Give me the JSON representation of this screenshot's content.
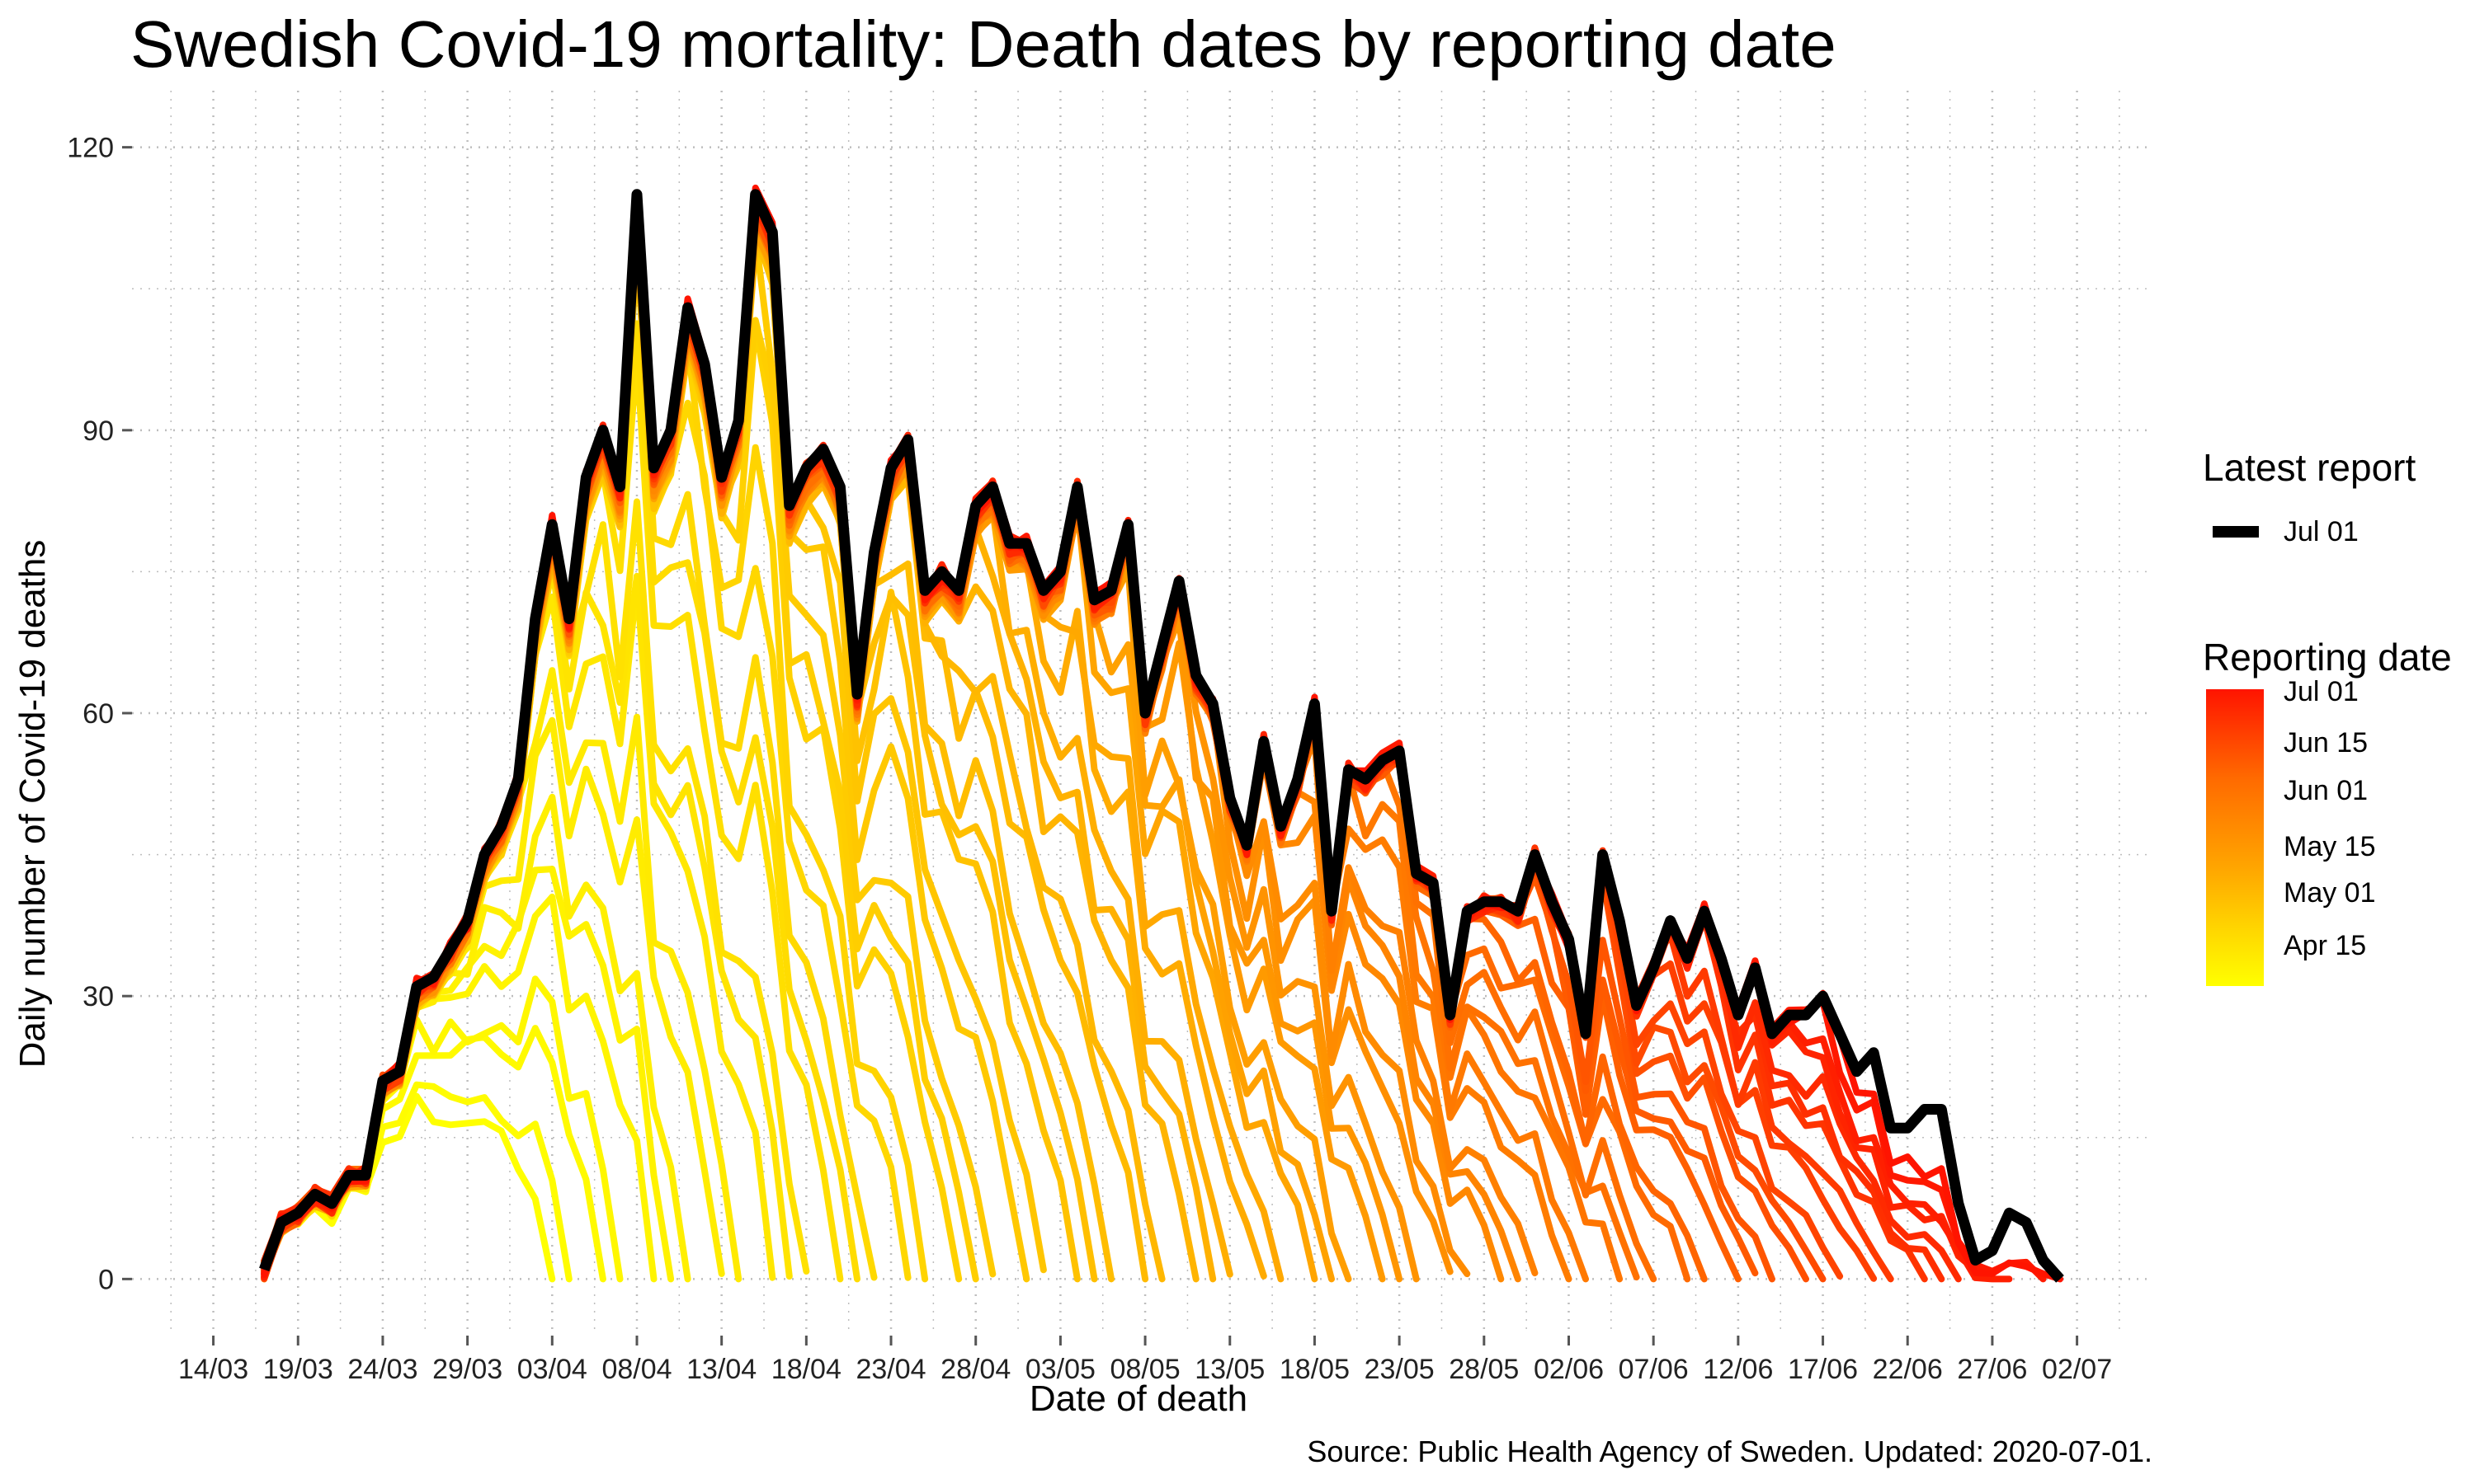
{
  "chart_data": {
    "type": "line",
    "title": "Swedish Covid-19 mortality: Death dates by reporting date",
    "xlabel": "Date of death",
    "ylabel": "Daily number of Covid-19 deaths",
    "source": "Source: Public Health Agency of Sweden. Updated: 2020-07-01.",
    "ylim": [
      -6,
      126
    ],
    "yticks": [
      0,
      30,
      60,
      90,
      120
    ],
    "x_start": "14/03",
    "x_day_range": [
      -4.8,
      114.5
    ],
    "xticks": [
      {
        "day": 0,
        "label": "14/03"
      },
      {
        "day": 5,
        "label": "19/03"
      },
      {
        "day": 10,
        "label": "24/03"
      },
      {
        "day": 15,
        "label": "29/03"
      },
      {
        "day": 20,
        "label": "03/04"
      },
      {
        "day": 25,
        "label": "08/04"
      },
      {
        "day": 30,
        "label": "13/04"
      },
      {
        "day": 35,
        "label": "18/04"
      },
      {
        "day": 40,
        "label": "23/04"
      },
      {
        "day": 45,
        "label": "28/04"
      },
      {
        "day": 50,
        "label": "03/05"
      },
      {
        "day": 55,
        "label": "08/05"
      },
      {
        "day": 60,
        "label": "13/05"
      },
      {
        "day": 65,
        "label": "18/05"
      },
      {
        "day": 70,
        "label": "23/05"
      },
      {
        "day": 75,
        "label": "28/05"
      },
      {
        "day": 80,
        "label": "02/06"
      },
      {
        "day": 85,
        "label": "07/06"
      },
      {
        "day": 90,
        "label": "12/06"
      },
      {
        "day": 95,
        "label": "17/06"
      },
      {
        "day": 100,
        "label": "22/06"
      },
      {
        "day": 105,
        "label": "27/06"
      },
      {
        "day": 110,
        "label": "02/07"
      }
    ],
    "latest_start_day": 3,
    "latest_report_values": [
      1,
      6,
      7,
      9,
      8,
      11,
      11,
      21,
      22,
      31,
      32,
      35,
      38,
      45,
      48,
      53,
      70,
      80,
      70,
      85,
      90,
      84,
      115,
      86,
      90,
      103,
      97,
      85,
      91,
      115,
      111,
      82,
      86,
      88,
      84,
      62,
      77,
      86,
      89,
      73,
      75,
      73,
      82,
      84,
      78,
      78,
      73,
      75,
      84,
      72,
      73,
      80,
      60,
      67,
      74,
      64,
      61,
      51,
      46,
      57,
      48,
      53,
      61,
      39,
      54,
      53,
      55,
      56,
      43,
      42,
      28,
      39,
      40,
      40,
      39,
      45,
      40,
      36,
      26,
      45,
      38,
      29,
      33,
      38,
      34,
      39,
      34,
      28,
      33,
      26,
      28,
      28,
      30,
      26,
      22,
      24,
      16,
      16,
      18,
      18,
      8,
      2,
      3,
      7,
      6,
      2,
      0
    ],
    "report_count": 65,
    "series_colors": [
      "#ffff00",
      "#ffd400",
      "#ffa500",
      "#ff6a00",
      "#ff1400"
    ],
    "legend": {
      "latest_title": "Latest report",
      "latest_label": "Jul 01",
      "latest_color": "#000000",
      "reporting_title": "Reporting date",
      "reporting_labels": [
        "Jul 01",
        "Jun 15",
        "Jun 01",
        "May 15",
        "May 01",
        "Apr 15"
      ]
    }
  }
}
